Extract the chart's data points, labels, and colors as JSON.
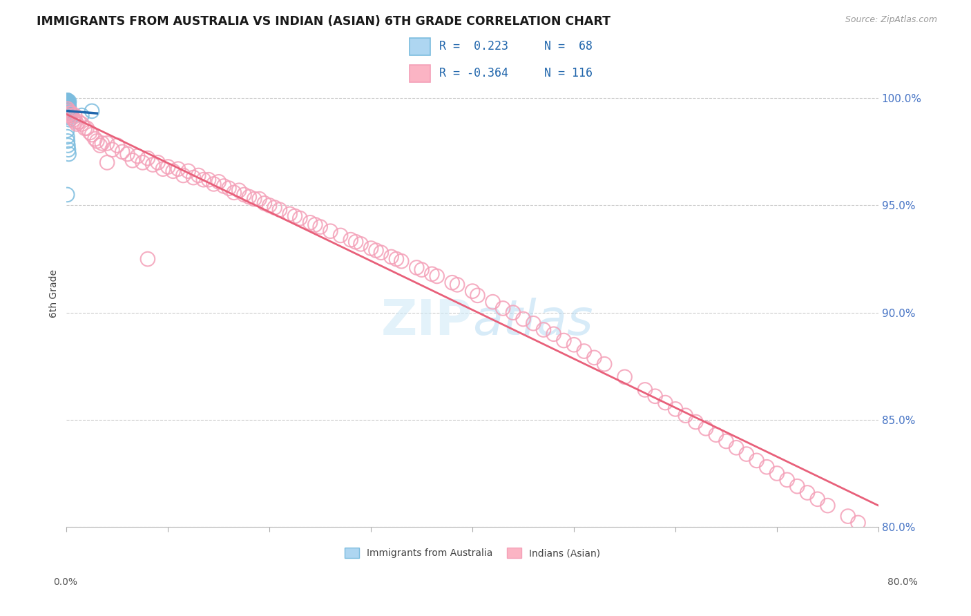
{
  "title": "IMMIGRANTS FROM AUSTRALIA VS INDIAN (ASIAN) 6TH GRADE CORRELATION CHART",
  "source": "Source: ZipAtlas.com",
  "ylabel": "6th Grade",
  "xmin": 0.0,
  "xmax": 80.0,
  "ymin": 80.0,
  "ymax": 101.8,
  "yticks": [
    80.0,
    85.0,
    90.0,
    95.0,
    100.0
  ],
  "ytick_labels": [
    "80.0%",
    "85.0%",
    "90.0%",
    "95.0%",
    "100.0%"
  ],
  "legend_label1": "Immigrants from Australia",
  "legend_label2": "Indians (Asian)",
  "blue_color": "#7bbcde",
  "pink_color": "#f4a0b8",
  "blue_line_color": "#2166ac",
  "pink_line_color": "#e8607a",
  "watermark_color": "#cce5f5",
  "blue_x": [
    0.05,
    0.08,
    0.1,
    0.1,
    0.1,
    0.1,
    0.1,
    0.12,
    0.12,
    0.12,
    0.14,
    0.15,
    0.15,
    0.15,
    0.16,
    0.17,
    0.18,
    0.18,
    0.19,
    0.2,
    0.2,
    0.2,
    0.2,
    0.21,
    0.22,
    0.22,
    0.23,
    0.24,
    0.25,
    0.25,
    0.06,
    0.07,
    0.08,
    0.09,
    0.11,
    0.13,
    0.16,
    0.18,
    0.21,
    0.04,
    0.05,
    0.06,
    0.08,
    0.09,
    0.11,
    0.13,
    0.16,
    0.18,
    0.21,
    0.24,
    0.05,
    0.07,
    0.1,
    0.14,
    0.18,
    0.22,
    0.25,
    0.3,
    1.5,
    2.5,
    0.08,
    0.12,
    0.1,
    0.15,
    0.18,
    0.2,
    0.22,
    0.06
  ],
  "blue_y": [
    99.85,
    99.9,
    99.8,
    99.75,
    99.7,
    99.85,
    99.9,
    99.8,
    99.75,
    99.7,
    99.65,
    99.8,
    99.75,
    99.85,
    99.7,
    99.65,
    99.8,
    99.6,
    99.55,
    99.75,
    99.7,
    99.65,
    99.6,
    99.55,
    99.7,
    99.65,
    99.6,
    99.55,
    99.85,
    99.5,
    99.8,
    99.75,
    99.7,
    99.65,
    99.6,
    99.55,
    99.5,
    99.45,
    99.4,
    99.85,
    99.8,
    99.75,
    99.7,
    99.65,
    99.6,
    99.55,
    99.5,
    99.45,
    99.4,
    99.35,
    98.5,
    98.2,
    98.0,
    97.8,
    97.6,
    97.4,
    99.2,
    99.0,
    99.2,
    99.4,
    99.8,
    99.7,
    99.6,
    99.5,
    99.3,
    99.2,
    99.1,
    95.5
  ],
  "pink_x": [
    0.1,
    0.2,
    0.3,
    0.4,
    0.5,
    0.6,
    0.7,
    0.8,
    0.9,
    1.0,
    1.2,
    1.5,
    1.8,
    2.0,
    2.3,
    2.5,
    2.8,
    3.0,
    3.3,
    3.5,
    4.0,
    4.5,
    5.0,
    5.5,
    6.0,
    6.5,
    7.0,
    7.5,
    8.0,
    8.5,
    9.0,
    9.5,
    10.0,
    10.5,
    11.0,
    11.5,
    12.0,
    12.5,
    13.0,
    13.5,
    14.0,
    14.5,
    15.0,
    15.5,
    16.0,
    16.5,
    17.0,
    17.5,
    18.0,
    18.5,
    19.0,
    19.5,
    20.0,
    20.5,
    21.0,
    22.0,
    22.5,
    23.0,
    24.0,
    24.5,
    25.0,
    26.0,
    27.0,
    28.0,
    28.5,
    29.0,
    30.0,
    30.5,
    31.0,
    32.0,
    32.5,
    33.0,
    34.5,
    35.0,
    36.0,
    36.5,
    38.0,
    38.5,
    40.0,
    40.5,
    42.0,
    43.0,
    44.0,
    45.0,
    46.0,
    47.0,
    48.0,
    49.0,
    50.0,
    51.0,
    52.0,
    53.0,
    55.0,
    57.0,
    58.0,
    59.0,
    60.0,
    61.0,
    62.0,
    63.0,
    64.0,
    65.0,
    66.0,
    67.0,
    68.0,
    69.0,
    70.0,
    71.0,
    72.0,
    73.0,
    74.0,
    75.0,
    77.0,
    78.0,
    4.0,
    8.0
  ],
  "pink_y": [
    99.5,
    99.4,
    99.3,
    99.2,
    99.3,
    99.1,
    99.0,
    99.2,
    98.9,
    98.8,
    98.9,
    98.8,
    98.6,
    98.6,
    98.4,
    98.3,
    98.1,
    98.0,
    97.8,
    97.9,
    97.9,
    97.6,
    97.8,
    97.5,
    97.4,
    97.1,
    97.3,
    97.0,
    97.2,
    96.9,
    97.0,
    96.7,
    96.8,
    96.6,
    96.7,
    96.4,
    96.6,
    96.3,
    96.4,
    96.2,
    96.2,
    96.0,
    96.1,
    95.9,
    95.8,
    95.6,
    95.7,
    95.5,
    95.4,
    95.3,
    95.3,
    95.1,
    95.0,
    94.9,
    94.8,
    94.6,
    94.5,
    94.4,
    94.2,
    94.1,
    94.0,
    93.8,
    93.6,
    93.4,
    93.3,
    93.2,
    93.0,
    92.9,
    92.8,
    92.6,
    92.5,
    92.4,
    92.1,
    92.0,
    91.8,
    91.7,
    91.4,
    91.3,
    91.0,
    90.8,
    90.5,
    90.2,
    90.0,
    89.7,
    89.5,
    89.2,
    89.0,
    88.7,
    88.5,
    88.2,
    87.9,
    87.6,
    87.0,
    86.4,
    86.1,
    85.8,
    85.5,
    85.2,
    84.9,
    84.6,
    84.3,
    84.0,
    83.7,
    83.4,
    83.1,
    82.8,
    82.5,
    82.2,
    81.9,
    81.6,
    81.3,
    81.0,
    80.5,
    80.2,
    97.0,
    92.5
  ]
}
